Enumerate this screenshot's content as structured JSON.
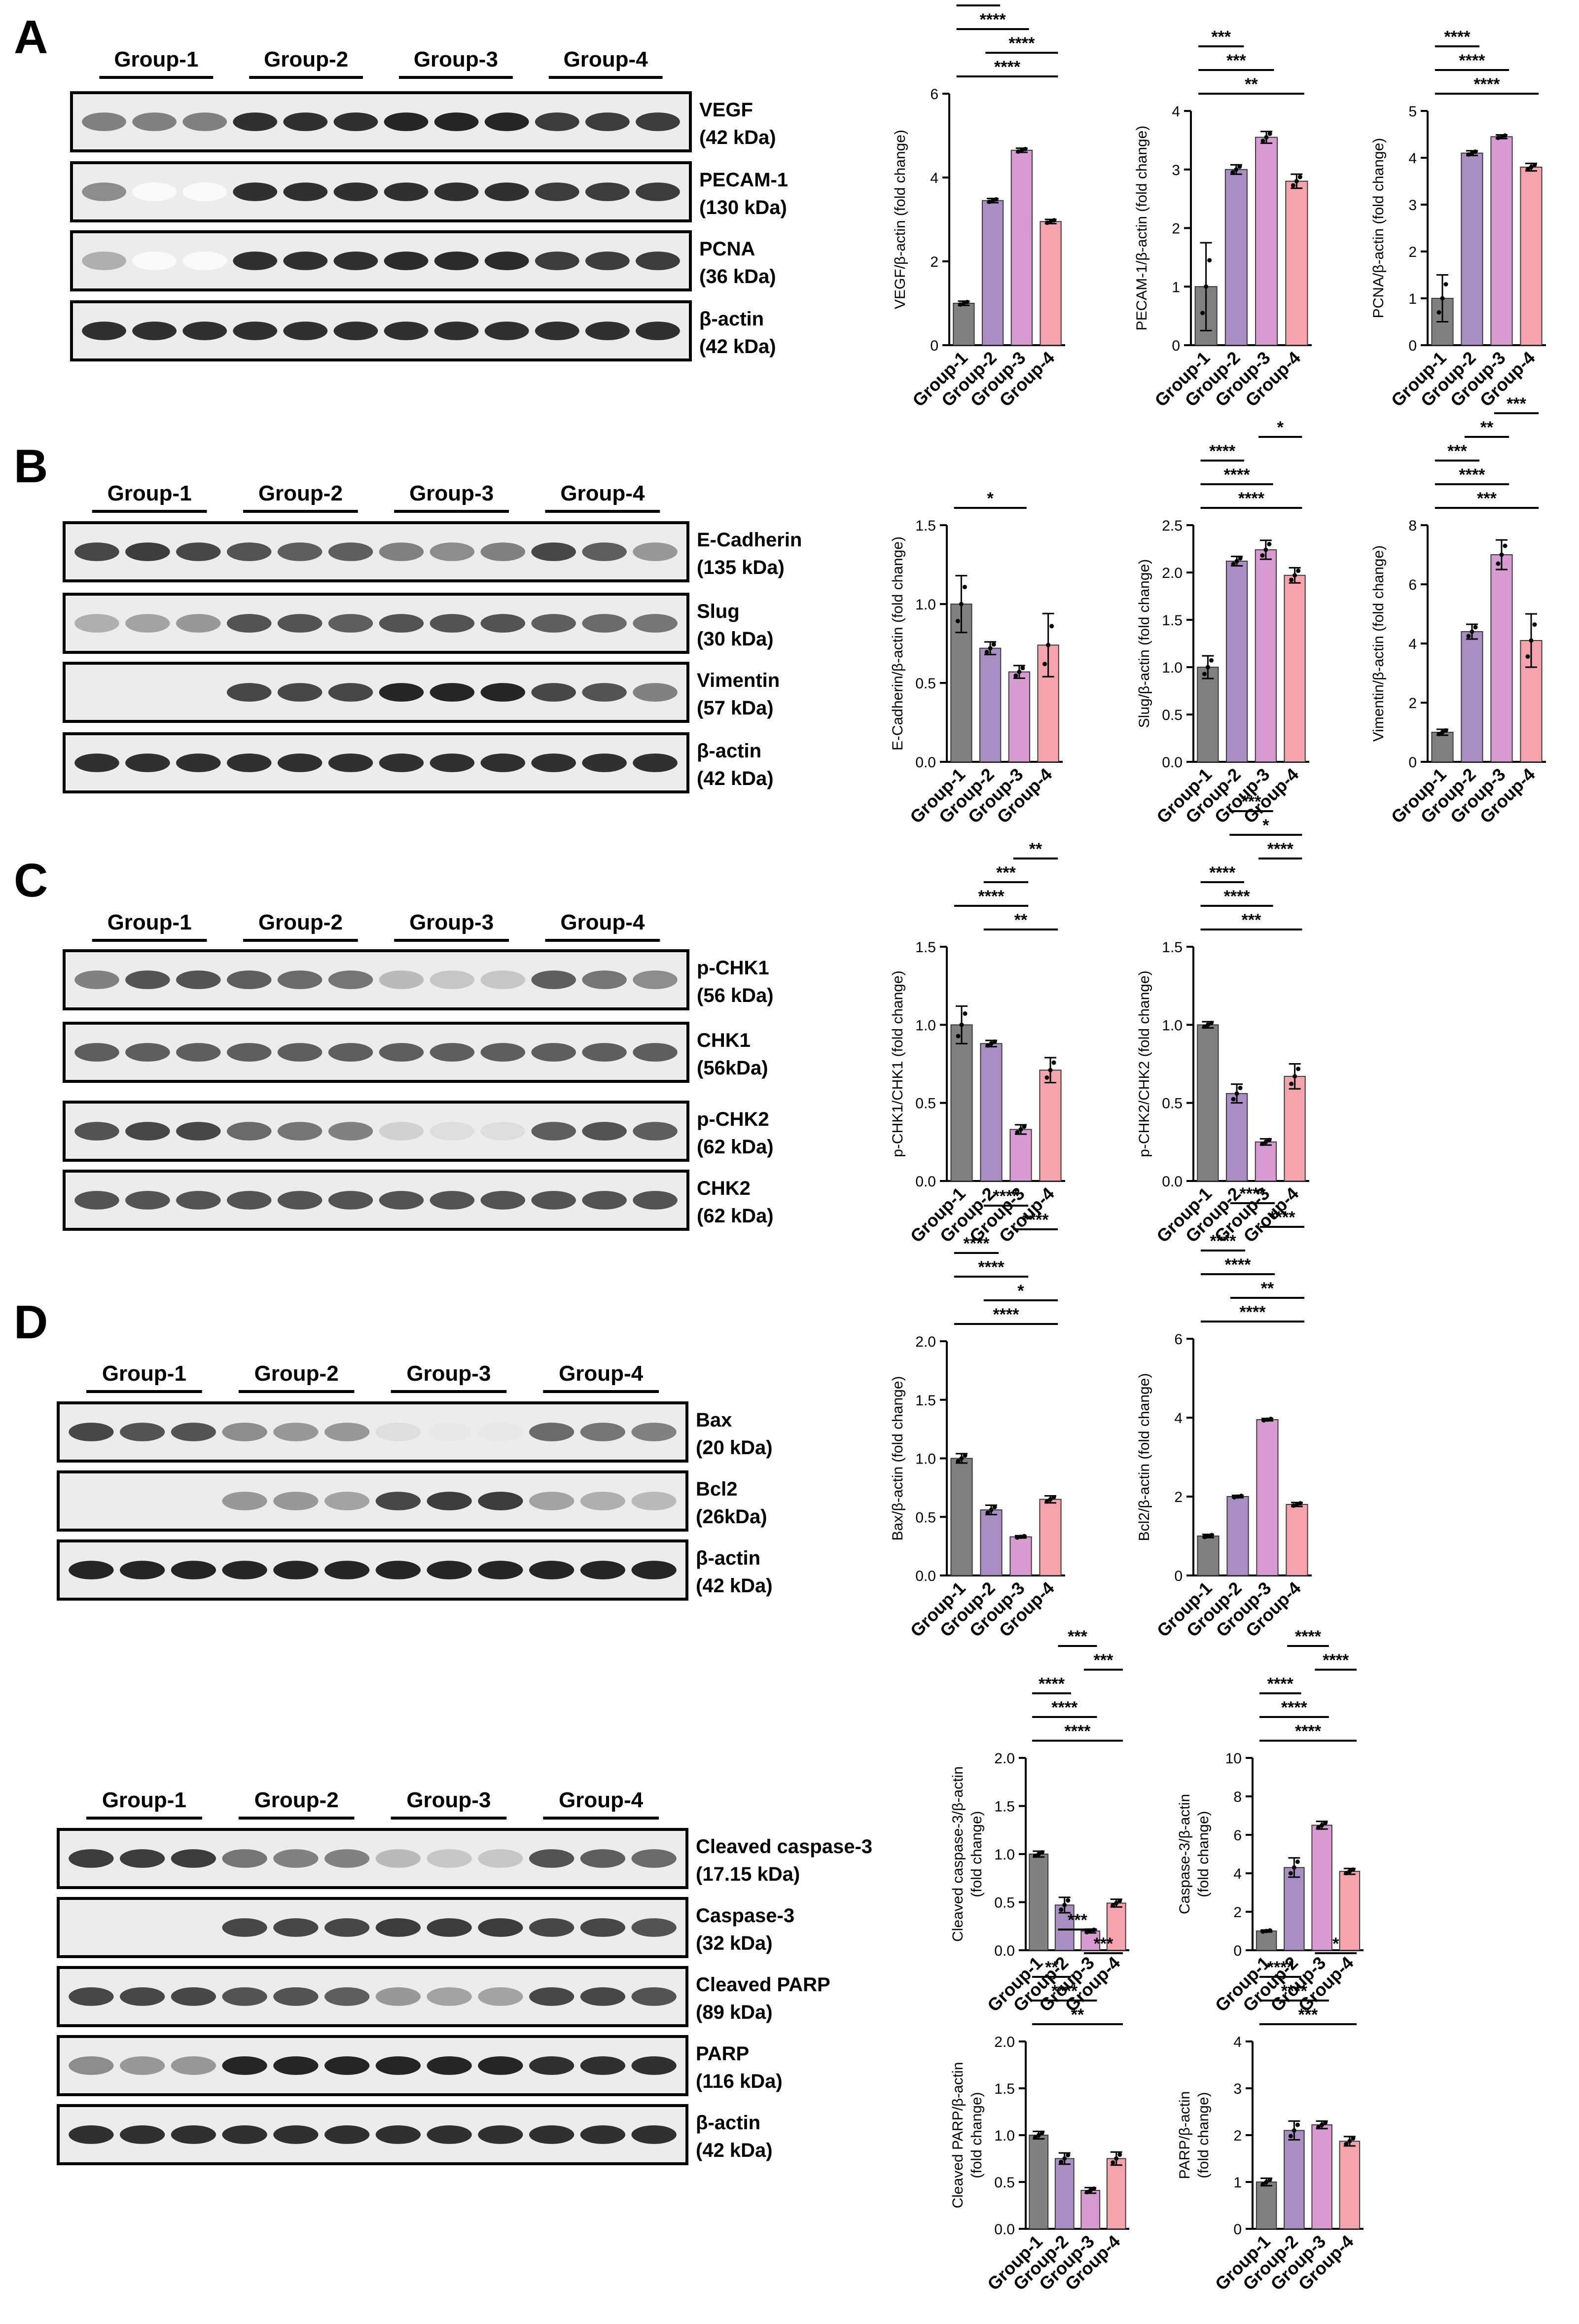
{
  "panels": [
    {
      "id": "A",
      "letter": "A"
    },
    {
      "id": "B",
      "letter": "B"
    },
    {
      "id": "C",
      "letter": "C"
    },
    {
      "id": "D",
      "letter": "D"
    }
  ],
  "group_labels": [
    "Group-1",
    "Group-2",
    "Group-3",
    "Group-4"
  ],
  "colors": {
    "group1": "#808080",
    "group2": "#a98ec4",
    "group3": "#d79bd2",
    "group4": "#f5a3ad"
  },
  "blots": {
    "A": [
      {
        "name": "VEGF",
        "kda": "(42 kDa)",
        "intensity": [
          0.55,
          0.55,
          0.55,
          0.9,
          0.9,
          0.9,
          0.95,
          0.95,
          0.95,
          0.85,
          0.85,
          0.85
        ]
      },
      {
        "name": "PECAM-1",
        "kda": "(130 kDa)",
        "intensity": [
          0.5,
          0.02,
          0.02,
          0.9,
          0.9,
          0.9,
          0.9,
          0.9,
          0.9,
          0.85,
          0.85,
          0.85
        ]
      },
      {
        "name": "PCNA",
        "kda": "(36 kDa)",
        "intensity": [
          0.35,
          0.02,
          0.02,
          0.9,
          0.9,
          0.9,
          0.92,
          0.92,
          0.92,
          0.85,
          0.85,
          0.85
        ]
      },
      {
        "name": "β-actin",
        "kda": "(42 kDa)",
        "intensity": [
          0.9,
          0.9,
          0.9,
          0.9,
          0.9,
          0.9,
          0.9,
          0.9,
          0.9,
          0.9,
          0.9,
          0.9
        ]
      }
    ],
    "B": [
      {
        "name": "E-Cadherin",
        "kda": "(135 kDa)",
        "intensity": [
          0.8,
          0.85,
          0.8,
          0.75,
          0.7,
          0.7,
          0.55,
          0.5,
          0.55,
          0.8,
          0.7,
          0.45
        ]
      },
      {
        "name": "Slug",
        "kda": "(30 kDa)",
        "intensity": [
          0.35,
          0.4,
          0.45,
          0.75,
          0.75,
          0.7,
          0.75,
          0.75,
          0.75,
          0.7,
          0.65,
          0.6
        ]
      },
      {
        "name": "Vimentin",
        "kda": "(57 kDa)",
        "intensity": [
          0.0,
          0.0,
          0.0,
          0.8,
          0.8,
          0.8,
          0.95,
          0.95,
          0.95,
          0.8,
          0.75,
          0.55
        ]
      },
      {
        "name": "β-actin",
        "kda": "(42 kDa)",
        "intensity": [
          0.9,
          0.9,
          0.9,
          0.9,
          0.9,
          0.9,
          0.9,
          0.9,
          0.9,
          0.9,
          0.9,
          0.9
        ]
      }
    ],
    "C": [
      {
        "name": "p-CHK1",
        "kda": "(56 kDa)",
        "intensity": [
          0.55,
          0.75,
          0.75,
          0.7,
          0.65,
          0.6,
          0.3,
          0.25,
          0.25,
          0.7,
          0.6,
          0.5
        ]
      },
      {
        "name": "CHK1",
        "kda": "(56kDa)",
        "intensity": [
          0.7,
          0.7,
          0.7,
          0.7,
          0.7,
          0.7,
          0.7,
          0.7,
          0.7,
          0.7,
          0.7,
          0.7
        ]
      },
      {
        "name": "p-CHK2",
        "kda": "(62 kDa)",
        "intensity": [
          0.75,
          0.8,
          0.8,
          0.65,
          0.6,
          0.55,
          0.2,
          0.15,
          0.15,
          0.7,
          0.75,
          0.7
        ]
      },
      {
        "name": "CHK2",
        "kda": "(62 kDa)",
        "intensity": [
          0.75,
          0.75,
          0.75,
          0.75,
          0.75,
          0.75,
          0.75,
          0.75,
          0.75,
          0.75,
          0.75,
          0.75
        ]
      }
    ],
    "D1": [
      {
        "name": "Bax",
        "kda": "(20 kDa)",
        "intensity": [
          0.8,
          0.75,
          0.75,
          0.5,
          0.45,
          0.45,
          0.15,
          0.1,
          0.1,
          0.65,
          0.6,
          0.55
        ]
      },
      {
        "name": "Bcl2",
        "kda": "(26kDa)",
        "intensity": [
          0.0,
          0.0,
          0.0,
          0.45,
          0.45,
          0.4,
          0.8,
          0.85,
          0.85,
          0.4,
          0.35,
          0.3
        ]
      },
      {
        "name": "β-actin",
        "kda": "(42 kDa)",
        "intensity": [
          0.95,
          0.95,
          0.95,
          0.95,
          0.95,
          0.95,
          0.95,
          0.95,
          0.95,
          0.95,
          0.95,
          0.95
        ]
      }
    ],
    "D2": [
      {
        "name": "Cleaved caspase-3",
        "kda": "(17.15 kDa)",
        "intensity": [
          0.85,
          0.85,
          0.85,
          0.6,
          0.55,
          0.55,
          0.3,
          0.25,
          0.25,
          0.75,
          0.7,
          0.65
        ]
      },
      {
        "name": "Caspase-3",
        "kda": "(32 kDa)",
        "intensity": [
          0.0,
          0.0,
          0.0,
          0.8,
          0.8,
          0.8,
          0.85,
          0.85,
          0.85,
          0.8,
          0.8,
          0.75
        ]
      },
      {
        "name": "Cleaved PARP",
        "kda": "(89 kDa)",
        "intensity": [
          0.8,
          0.8,
          0.8,
          0.75,
          0.75,
          0.7,
          0.45,
          0.4,
          0.4,
          0.8,
          0.8,
          0.75
        ]
      },
      {
        "name": "PARP",
        "kda": "(116 kDa)",
        "intensity": [
          0.5,
          0.45,
          0.45,
          0.95,
          0.95,
          0.95,
          0.95,
          0.95,
          0.95,
          0.9,
          0.9,
          0.9
        ]
      },
      {
        "name": "β-actin",
        "kda": "(42 kDa)",
        "intensity": [
          0.9,
          0.9,
          0.9,
          0.9,
          0.9,
          0.9,
          0.9,
          0.9,
          0.9,
          0.9,
          0.9,
          0.9
        ]
      }
    ]
  },
  "chart_data": [
    {
      "type": "bar",
      "id": "vegf",
      "ylabel": "VEGF/β-actin (fold change)",
      "categories": [
        "Group-1",
        "Group-2",
        "Group-3",
        "Group-4"
      ],
      "values": [
        1.0,
        3.45,
        4.65,
        2.95
      ],
      "errors": [
        0.05,
        0.05,
        0.05,
        0.05
      ],
      "ylim": [
        0,
        6
      ],
      "yticks": [
        0,
        2,
        4,
        6
      ],
      "sig": [
        {
          "a": 0,
          "b": 3,
          "l": "****"
        },
        {
          "a": 1,
          "b": 3,
          "l": "****"
        },
        {
          "a": 0,
          "b": 2,
          "l": "****"
        },
        {
          "a": 0,
          "b": 1,
          "l": "****"
        },
        {
          "a": 2,
          "b": 3,
          "l": "****"
        },
        {
          "a": 1,
          "b": 2,
          "l": "****"
        }
      ]
    },
    {
      "type": "bar",
      "id": "pecam",
      "ylabel": "PECAM-1/β-actin (fold change)",
      "categories": [
        "Group-1",
        "Group-2",
        "Group-3",
        "Group-4"
      ],
      "values": [
        1.0,
        3.0,
        3.55,
        2.8
      ],
      "errors": [
        0.75,
        0.08,
        0.1,
        0.12
      ],
      "ylim": [
        0,
        4
      ],
      "yticks": [
        0,
        1,
        2,
        3,
        4
      ],
      "sig": [
        {
          "a": 0,
          "b": 3,
          "l": "**"
        },
        {
          "a": 0,
          "b": 2,
          "l": "***"
        },
        {
          "a": 0,
          "b": 1,
          "l": "***"
        }
      ]
    },
    {
      "type": "bar",
      "id": "pcna",
      "ylabel": "PCNA/β-actin (fold change)",
      "categories": [
        "Group-1",
        "Group-2",
        "Group-3",
        "Group-4"
      ],
      "values": [
        1.0,
        4.1,
        4.45,
        3.8
      ],
      "errors": [
        0.5,
        0.05,
        0.04,
        0.08
      ],
      "ylim": [
        0,
        5
      ],
      "yticks": [
        0,
        1,
        2,
        3,
        4,
        5
      ],
      "sig": [
        {
          "a": 0,
          "b": 3,
          "l": "****"
        },
        {
          "a": 0,
          "b": 2,
          "l": "****"
        },
        {
          "a": 0,
          "b": 1,
          "l": "****"
        }
      ]
    },
    {
      "type": "bar",
      "id": "ecad",
      "ylabel": "E-Cadherin/β-actin (fold change)",
      "categories": [
        "Group-1",
        "Group-2",
        "Group-3",
        "Group-4"
      ],
      "values": [
        1.0,
        0.72,
        0.57,
        0.74
      ],
      "errors": [
        0.18,
        0.04,
        0.04,
        0.2
      ],
      "ylim": [
        0,
        1.5
      ],
      "yticks": [
        0.0,
        0.5,
        1.0,
        1.5
      ],
      "sig": [
        {
          "a": 0,
          "b": 2,
          "l": "*"
        }
      ]
    },
    {
      "type": "bar",
      "id": "slug",
      "ylabel": "Slug/β-actin (fold change)",
      "categories": [
        "Group-1",
        "Group-2",
        "Group-3",
        "Group-4"
      ],
      "values": [
        1.0,
        2.12,
        2.24,
        1.97
      ],
      "errors": [
        0.12,
        0.05,
        0.1,
        0.08
      ],
      "ylim": [
        0,
        2.5
      ],
      "yticks": [
        0.0,
        0.5,
        1.0,
        1.5,
        2.0,
        2.5
      ],
      "sig": [
        {
          "a": 0,
          "b": 3,
          "l": "****"
        },
        {
          "a": 0,
          "b": 2,
          "l": "****"
        },
        {
          "a": 0,
          "b": 1,
          "l": "****"
        },
        {
          "a": 2,
          "b": 3,
          "l": "*"
        }
      ]
    },
    {
      "type": "bar",
      "id": "vim",
      "ylabel": "Vimentin/β-actin (fold change)",
      "categories": [
        "Group-1",
        "Group-2",
        "Group-3",
        "Group-4"
      ],
      "values": [
        1.0,
        4.4,
        7.0,
        4.1
      ],
      "errors": [
        0.1,
        0.25,
        0.5,
        0.9
      ],
      "ylim": [
        0,
        8
      ],
      "yticks": [
        0,
        2,
        4,
        6,
        8
      ],
      "sig": [
        {
          "a": 0,
          "b": 3,
          "l": "***"
        },
        {
          "a": 0,
          "b": 2,
          "l": "****"
        },
        {
          "a": 0,
          "b": 1,
          "l": "***"
        },
        {
          "a": 1,
          "b": 2,
          "l": "**"
        },
        {
          "a": 2,
          "b": 3,
          "l": "***"
        }
      ]
    },
    {
      "type": "bar",
      "id": "pchk1",
      "ylabel": "p-CHK1/CHK1 (fold change)",
      "categories": [
        "Group-1",
        "Group-2",
        "Group-3",
        "Group-4"
      ],
      "values": [
        1.0,
        0.88,
        0.33,
        0.71
      ],
      "errors": [
        0.12,
        0.02,
        0.03,
        0.08
      ],
      "ylim": [
        0,
        1.5
      ],
      "yticks": [
        0.0,
        0.5,
        1.0,
        1.5
      ],
      "sig": [
        {
          "a": 1,
          "b": 3,
          "l": "**"
        },
        {
          "a": 0,
          "b": 2,
          "l": "****"
        },
        {
          "a": 1,
          "b": 2,
          "l": "***"
        },
        {
          "a": 2,
          "b": 3,
          "l": "**"
        }
      ]
    },
    {
      "type": "bar",
      "id": "pchk2",
      "ylabel": "p-CHK2/CHK2 (fold change)",
      "categories": [
        "Group-1",
        "Group-2",
        "Group-3",
        "Group-4"
      ],
      "values": [
        1.0,
        0.56,
        0.25,
        0.67
      ],
      "errors": [
        0.02,
        0.06,
        0.02,
        0.08
      ],
      "ylim": [
        0,
        1.5
      ],
      "yticks": [
        0.0,
        0.5,
        1.0,
        1.5
      ],
      "sig": [
        {
          "a": 0,
          "b": 3,
          "l": "***"
        },
        {
          "a": 0,
          "b": 2,
          "l": "****"
        },
        {
          "a": 0,
          "b": 1,
          "l": "****"
        },
        {
          "a": 2,
          "b": 3,
          "l": "****"
        },
        {
          "a": 1,
          "b": 3,
          "l": "*"
        },
        {
          "a": 1,
          "b": 2,
          "l": "***"
        }
      ]
    },
    {
      "type": "bar",
      "id": "bax",
      "ylabel": "Bax/β-actin (fold change)",
      "categories": [
        "Group-1",
        "Group-2",
        "Group-3",
        "Group-4"
      ],
      "values": [
        1.0,
        0.56,
        0.33,
        0.65
      ],
      "errors": [
        0.04,
        0.04,
        0.01,
        0.03
      ],
      "ylim": [
        0,
        2.0
      ],
      "yticks": [
        0.0,
        0.5,
        1.0,
        1.5,
        2.0
      ],
      "sig": [
        {
          "a": 0,
          "b": 3,
          "l": "****"
        },
        {
          "a": 1,
          "b": 3,
          "l": "*"
        },
        {
          "a": 0,
          "b": 2,
          "l": "****"
        },
        {
          "a": 0,
          "b": 1,
          "l": "****"
        },
        {
          "a": 2,
          "b": 3,
          "l": "****"
        },
        {
          "a": 1,
          "b": 2,
          "l": "****"
        }
      ]
    },
    {
      "type": "bar",
      "id": "bcl2",
      "ylabel": "Bcl2/β-actin (fold change)",
      "categories": [
        "Group-1",
        "Group-2",
        "Group-3",
        "Group-4"
      ],
      "values": [
        1.0,
        2.0,
        3.95,
        1.8
      ],
      "errors": [
        0.04,
        0.03,
        0.03,
        0.05
      ],
      "ylim": [
        0,
        6
      ],
      "yticks": [
        0,
        2,
        4,
        6
      ],
      "sig": [
        {
          "a": 0,
          "b": 3,
          "l": "****"
        },
        {
          "a": 1,
          "b": 3,
          "l": "**"
        },
        {
          "a": 0,
          "b": 2,
          "l": "****"
        },
        {
          "a": 0,
          "b": 1,
          "l": "****"
        },
        {
          "a": 2,
          "b": 3,
          "l": "****"
        },
        {
          "a": 1,
          "b": 2,
          "l": "****"
        }
      ]
    },
    {
      "type": "bar",
      "id": "clcasp",
      "ylabel": "Cleaved caspase-3/β-actin (fold change)",
      "ylabel_lines": [
        "Cleaved caspase-3/β-actin",
        "(fold change)"
      ],
      "categories": [
        "Group-1",
        "Group-2",
        "Group-3",
        "Group-4"
      ],
      "values": [
        1.0,
        0.47,
        0.2,
        0.49
      ],
      "errors": [
        0.03,
        0.08,
        0.02,
        0.04
      ],
      "ylim": [
        0,
        2.0
      ],
      "yticks": [
        0.0,
        0.5,
        1.0,
        1.5,
        2.0
      ],
      "sig": [
        {
          "a": 0,
          "b": 3,
          "l": "****"
        },
        {
          "a": 0,
          "b": 2,
          "l": "****"
        },
        {
          "a": 0,
          "b": 1,
          "l": "****"
        },
        {
          "a": 2,
          "b": 3,
          "l": "***"
        },
        {
          "a": 1,
          "b": 2,
          "l": "***"
        }
      ]
    },
    {
      "type": "bar",
      "id": "casp",
      "ylabel": "Caspase-3/β-actin (fold change)",
      "ylabel_lines": [
        "Caspase-3/β-actin",
        "(fold change)"
      ],
      "categories": [
        "Group-1",
        "Group-2",
        "Group-3",
        "Group-4"
      ],
      "values": [
        1.0,
        4.3,
        6.5,
        4.1
      ],
      "errors": [
        0.05,
        0.5,
        0.2,
        0.15
      ],
      "ylim": [
        0,
        10
      ],
      "yticks": [
        0,
        2,
        4,
        6,
        8,
        10
      ],
      "sig": [
        {
          "a": 0,
          "b": 3,
          "l": "****"
        },
        {
          "a": 0,
          "b": 2,
          "l": "****"
        },
        {
          "a": 0,
          "b": 1,
          "l": "****"
        },
        {
          "a": 2,
          "b": 3,
          "l": "****"
        },
        {
          "a": 1,
          "b": 2,
          "l": "****"
        }
      ]
    },
    {
      "type": "bar",
      "id": "clparp",
      "ylabel": "Cleaved PARP/β-actin (fold change)",
      "ylabel_lines": [
        "Cleaved PARP/β-actin",
        "(fold change)"
      ],
      "categories": [
        "Group-1",
        "Group-2",
        "Group-3",
        "Group-4"
      ],
      "values": [
        1.0,
        0.75,
        0.41,
        0.75
      ],
      "errors": [
        0.04,
        0.06,
        0.03,
        0.07
      ],
      "ylim": [
        0,
        2.0
      ],
      "yticks": [
        0.0,
        0.5,
        1.0,
        1.5,
        2.0
      ],
      "sig": [
        {
          "a": 0,
          "b": 3,
          "l": "**"
        },
        {
          "a": 0,
          "b": 2,
          "l": "****"
        },
        {
          "a": 0,
          "b": 1,
          "l": "**"
        },
        {
          "a": 2,
          "b": 3,
          "l": "***"
        },
        {
          "a": 1,
          "b": 2,
          "l": "***"
        }
      ]
    },
    {
      "type": "bar",
      "id": "parp",
      "ylabel": "PARP/β-actin (fold change)",
      "ylabel_lines": [
        "PARP/β-actin",
        "(fold change)"
      ],
      "categories": [
        "Group-1",
        "Group-2",
        "Group-3",
        "Group-4"
      ],
      "values": [
        1.0,
        2.1,
        2.22,
        1.87
      ],
      "errors": [
        0.08,
        0.2,
        0.08,
        0.1
      ],
      "ylim": [
        0,
        4
      ],
      "yticks": [
        0,
        1,
        2,
        3,
        4
      ],
      "sig": [
        {
          "a": 0,
          "b": 3,
          "l": "***"
        },
        {
          "a": 0,
          "b": 2,
          "l": "****"
        },
        {
          "a": 0,
          "b": 1,
          "l": "****"
        },
        {
          "a": 2,
          "b": 3,
          "l": "*"
        }
      ]
    }
  ]
}
